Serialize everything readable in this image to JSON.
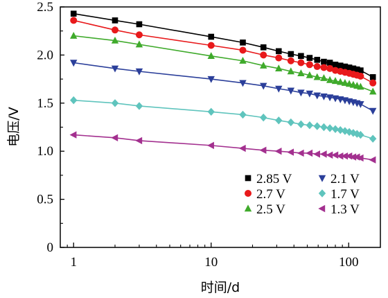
{
  "chart_data": {
    "type": "line",
    "xlabel": "时间/d",
    "ylabel": "电压/V",
    "x_scale": "log",
    "xlim": [
      0.8,
      170
    ],
    "ylim": [
      0,
      2.5
    ],
    "xticks": [
      1,
      10,
      100
    ],
    "xtick_labels": [
      "1",
      "10",
      "100"
    ],
    "yticks": [
      0,
      0.5,
      1.0,
      1.5,
      2.0,
      2.5
    ],
    "ytick_labels": [
      "0",
      "0.5",
      "1.0",
      "1.5",
      "2.0",
      "2.5"
    ],
    "grid": false,
    "legend_position": "bottom-right",
    "series": [
      {
        "name": "2.85 V",
        "color": "#000000",
        "marker": "square",
        "x": [
          1,
          2,
          3,
          10,
          17,
          24,
          31,
          38,
          45,
          52,
          59,
          66,
          73,
          80,
          87,
          94,
          101,
          108,
          115,
          122,
          150
        ],
        "y": [
          2.43,
          2.36,
          2.32,
          2.19,
          2.13,
          2.08,
          2.04,
          2.01,
          1.99,
          1.97,
          1.95,
          1.93,
          1.92,
          1.9,
          1.89,
          1.88,
          1.87,
          1.86,
          1.85,
          1.84,
          1.77
        ]
      },
      {
        "name": "2.7 V",
        "color": "#e8191b",
        "marker": "circle",
        "x": [
          1,
          2,
          3,
          10,
          17,
          24,
          31,
          38,
          45,
          52,
          59,
          66,
          73,
          80,
          87,
          94,
          101,
          108,
          115,
          122,
          150
        ],
        "y": [
          2.36,
          2.26,
          2.21,
          2.1,
          2.05,
          2.0,
          1.97,
          1.94,
          1.92,
          1.9,
          1.88,
          1.87,
          1.86,
          1.84,
          1.83,
          1.82,
          1.81,
          1.8,
          1.79,
          1.78,
          1.71
        ]
      },
      {
        "name": "2.5 V",
        "color": "#3faa2b",
        "marker": "triangle-up",
        "x": [
          1,
          2,
          3,
          10,
          17,
          24,
          31,
          38,
          45,
          52,
          59,
          66,
          73,
          80,
          87,
          94,
          101,
          108,
          115,
          122,
          150
        ],
        "y": [
          2.2,
          2.15,
          2.11,
          1.99,
          1.94,
          1.89,
          1.86,
          1.83,
          1.81,
          1.79,
          1.77,
          1.76,
          1.74,
          1.73,
          1.72,
          1.71,
          1.7,
          1.69,
          1.68,
          1.67,
          1.62
        ]
      },
      {
        "name": "2.1 V",
        "color": "#2b3f9a",
        "marker": "triangle-down",
        "x": [
          1,
          2,
          3,
          10,
          17,
          24,
          31,
          38,
          45,
          52,
          59,
          66,
          73,
          80,
          87,
          94,
          101,
          108,
          115,
          122,
          150
        ],
        "y": [
          1.92,
          1.86,
          1.83,
          1.75,
          1.71,
          1.68,
          1.65,
          1.63,
          1.61,
          1.6,
          1.58,
          1.57,
          1.56,
          1.55,
          1.54,
          1.53,
          1.52,
          1.51,
          1.5,
          1.49,
          1.42
        ]
      },
      {
        "name": "1.7 V",
        "color": "#5fc4bd",
        "marker": "diamond",
        "x": [
          1,
          2,
          3,
          10,
          17,
          24,
          31,
          38,
          45,
          52,
          59,
          66,
          73,
          80,
          87,
          94,
          101,
          108,
          115,
          122,
          150
        ],
        "y": [
          1.53,
          1.5,
          1.47,
          1.41,
          1.38,
          1.35,
          1.32,
          1.3,
          1.28,
          1.27,
          1.26,
          1.25,
          1.24,
          1.23,
          1.22,
          1.21,
          1.2,
          1.19,
          1.18,
          1.17,
          1.13
        ]
      },
      {
        "name": "1.3 V",
        "color": "#a3308f",
        "marker": "triangle-left",
        "x": [
          1,
          2,
          3,
          10,
          17,
          24,
          31,
          38,
          45,
          52,
          59,
          66,
          73,
          80,
          87,
          94,
          101,
          108,
          115,
          122,
          150
        ],
        "y": [
          1.17,
          1.14,
          1.11,
          1.06,
          1.03,
          1.01,
          1.0,
          0.99,
          0.98,
          0.98,
          0.97,
          0.97,
          0.96,
          0.96,
          0.95,
          0.95,
          0.95,
          0.94,
          0.94,
          0.93,
          0.91
        ]
      }
    ]
  }
}
